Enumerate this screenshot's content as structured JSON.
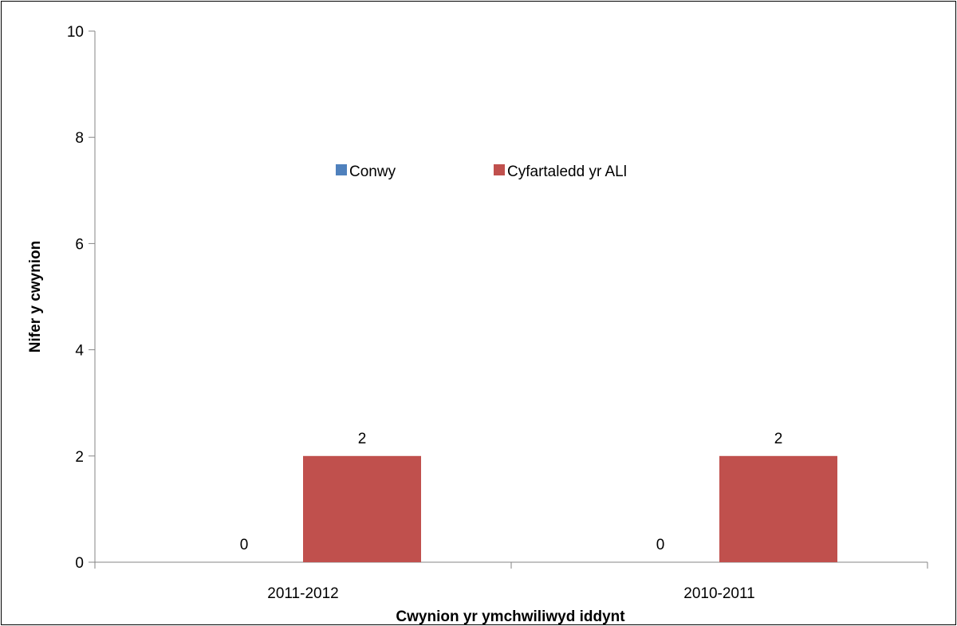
{
  "chart_data": {
    "type": "bar",
    "title": "",
    "xlabel": "Cwynion yr ymchwiliwyd iddynt",
    "ylabel": "Nifer y cwynion",
    "categories": [
      "2011-2012",
      "2010-2011"
    ],
    "series": [
      {
        "name": "Conwy",
        "values": [
          0,
          0
        ],
        "color": "#4f81bd"
      },
      {
        "name": "Cyfartaledd yr ALl",
        "values": [
          2,
          2
        ],
        "color": "#c0504d"
      }
    ],
    "ylim": [
      0,
      10
    ],
    "yticks": [
      0,
      2,
      4,
      6,
      8,
      10
    ],
    "data_labels": true,
    "grid": false,
    "legend_position": "inside-top-center"
  }
}
